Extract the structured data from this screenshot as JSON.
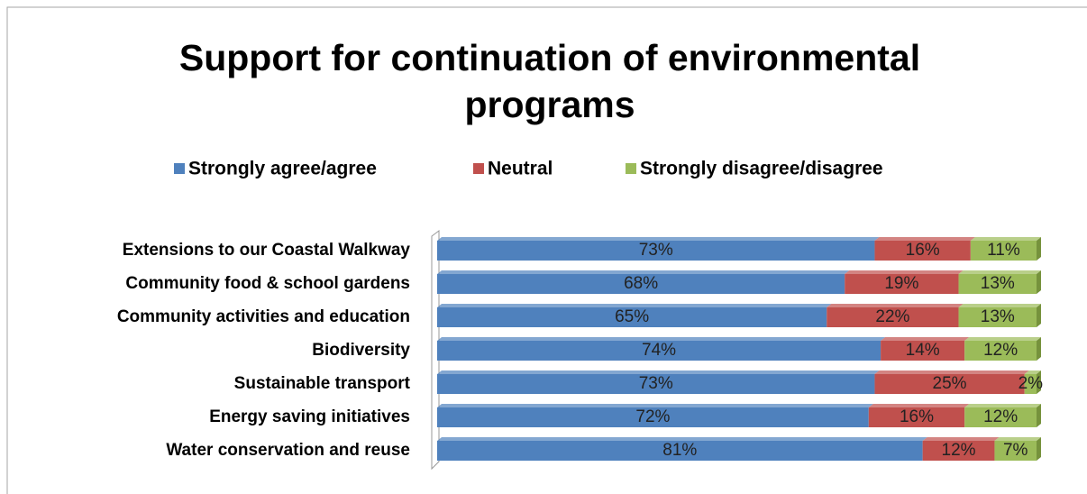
{
  "chart_data": {
    "type": "stacked-bar-horizontal",
    "title": "Support for continuation of environmental programs",
    "categories": [
      "Extensions to our Coastal Walkway",
      "Community food & school gardens",
      "Community activities and education",
      "Biodiversity",
      "Sustainable transport",
      "Energy saving initiatives",
      "Water conservation and reuse"
    ],
    "series": [
      {
        "name": "Strongly agree/agree",
        "color": "#4f81bd",
        "values": [
          73,
          68,
          65,
          74,
          73,
          72,
          81
        ],
        "value_labels": [
          "73%",
          "68%",
          "65%",
          "74%",
          "73%",
          "72%",
          "81%"
        ]
      },
      {
        "name": "Neutral",
        "color": "#c0504d",
        "values": [
          16,
          19,
          22,
          14,
          25,
          16,
          12
        ],
        "value_labels": [
          "16%",
          "19%",
          "22%",
          "14%",
          "25%",
          "16%",
          "12%"
        ]
      },
      {
        "name": "Strongly disagree/disagree",
        "color": "#9bbb59",
        "values": [
          11,
          13,
          13,
          12,
          2,
          12,
          7
        ],
        "value_labels": [
          "11%",
          "13%",
          "13%",
          "12%",
          "2%",
          "12%",
          "7%"
        ]
      }
    ],
    "legend": "top"
  }
}
